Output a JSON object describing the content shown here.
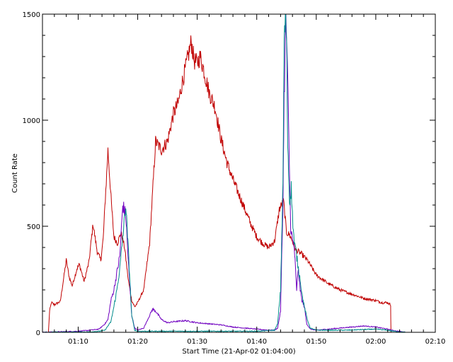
{
  "chart_data": {
    "type": "line",
    "title": "",
    "xlabel": "Start Time (21-Apr-02 01:04:00)",
    "ylabel": "Count Rate",
    "xlim_minutes": [
      64,
      130
    ],
    "ylim": [
      0,
      1500
    ],
    "grid": false,
    "x_ticks": [
      {
        "minute": 70,
        "label": "01:10"
      },
      {
        "minute": 80,
        "label": "01:20"
      },
      {
        "minute": 90,
        "label": "01:30"
      },
      {
        "minute": 100,
        "label": "01:40"
      },
      {
        "minute": 110,
        "label": "01:50"
      },
      {
        "minute": 120,
        "label": "02:00"
      },
      {
        "minute": 130,
        "label": "02:10"
      }
    ],
    "y_ticks": [
      {
        "value": 0,
        "label": "0"
      },
      {
        "value": 500,
        "label": "500"
      },
      {
        "value": 1000,
        "label": "1000"
      },
      {
        "value": 1500,
        "label": "1500"
      }
    ],
    "series": [
      {
        "color": "#c00000",
        "x": [
          65.0,
          65.2,
          65.5,
          66.0,
          67.0,
          68.0,
          68.5,
          69.0,
          69.8,
          70.2,
          71.0,
          71.8,
          72.5,
          73.2,
          73.8,
          74.2,
          75.0,
          75.6,
          76.0,
          76.6,
          77.2,
          77.8,
          78.4,
          79.0,
          79.5,
          80.0,
          81.0,
          82.0,
          83.0,
          84.0,
          85.0,
          86.0,
          86.8,
          87.5,
          88.0,
          89.0,
          89.5,
          90.0,
          90.5,
          91.0,
          92.0,
          93.0,
          94.0,
          95.0,
          96.0,
          97.0,
          98.0,
          99.0,
          100.0,
          101.0,
          102.0,
          103.0,
          103.8,
          104.5,
          105.0,
          105.5,
          106.0,
          106.5,
          107.5,
          108.5,
          110.0,
          112.0,
          114.0,
          116.0,
          118.0,
          120.0,
          121.0,
          122.0,
          122.5,
          122.55
        ],
        "y": [
          0,
          100,
          140,
          130,
          145,
          340,
          260,
          220,
          300,
          320,
          240,
          330,
          510,
          380,
          340,
          440,
          860,
          600,
          450,
          420,
          470,
          400,
          250,
          150,
          120,
          140,
          200,
          420,
          900,
          860,
          900,
          1030,
          1080,
          1180,
          1240,
          1370,
          1280,
          1270,
          1300,
          1250,
          1130,
          1060,
          910,
          800,
          720,
          650,
          580,
          510,
          450,
          420,
          400,
          430,
          580,
          620,
          470,
          460,
          430,
          390,
          370,
          340,
          270,
          230,
          200,
          180,
          160,
          150,
          140,
          140,
          130,
          0
        ]
      },
      {
        "color": "#7000c0",
        "x": [
          64.0,
          70.0,
          72.0,
          73.5,
          74.5,
          75.0,
          75.5,
          76.0,
          76.5,
          77.0,
          77.5,
          78.0,
          78.5,
          79.0,
          79.5,
          80.0,
          81.0,
          82.0,
          82.5,
          83.0,
          84.0,
          85.0,
          86.0,
          88.0,
          90.0,
          92.0,
          94.0,
          96.0,
          98.0,
          100.0,
          102.0,
          103.0,
          103.5,
          104.0,
          104.4,
          104.6,
          104.9,
          105.1,
          105.4,
          105.7,
          106.0,
          106.3,
          106.7,
          107.0,
          107.3,
          107.6,
          108.0,
          108.4,
          109.0,
          110.0,
          112.0,
          114.0,
          116.0,
          118.0,
          120.0,
          122.0,
          123.0,
          125.0
        ],
        "y": [
          0,
          5,
          10,
          15,
          40,
          60,
          150,
          200,
          280,
          360,
          600,
          550,
          300,
          80,
          20,
          10,
          20,
          80,
          110,
          100,
          60,
          45,
          50,
          55,
          45,
          40,
          35,
          25,
          20,
          15,
          10,
          10,
          20,
          100,
          600,
          1100,
          1500,
          1300,
          900,
          500,
          430,
          400,
          200,
          300,
          200,
          150,
          120,
          40,
          15,
          10,
          15,
          20,
          25,
          30,
          25,
          15,
          8,
          0
        ]
      },
      {
        "color": "#008b8b",
        "x": [
          64.0,
          72.0,
          73.5,
          74.5,
          75.0,
          75.5,
          76.0,
          76.5,
          77.0,
          77.5,
          78.0,
          78.5,
          79.0,
          79.5,
          80.0,
          85.0,
          90.0,
          95.0,
          100.0,
          103.0,
          103.5,
          104.0,
          104.4,
          104.6,
          104.8,
          105.0,
          105.2,
          105.5,
          105.8,
          106.0,
          106.3,
          106.6,
          107.0,
          107.3,
          107.6,
          108.0,
          108.5,
          109.0,
          110.0,
          115.0,
          120.0,
          122.0,
          123.0,
          125.0
        ],
        "y": [
          0,
          2,
          5,
          10,
          30,
          50,
          120,
          200,
          300,
          450,
          600,
          350,
          80,
          10,
          5,
          5,
          5,
          5,
          5,
          10,
          40,
          200,
          700,
          1350,
          1500,
          1400,
          900,
          620,
          680,
          550,
          420,
          380,
          300,
          250,
          180,
          120,
          60,
          20,
          10,
          10,
          15,
          10,
          5,
          0
        ]
      }
    ]
  }
}
